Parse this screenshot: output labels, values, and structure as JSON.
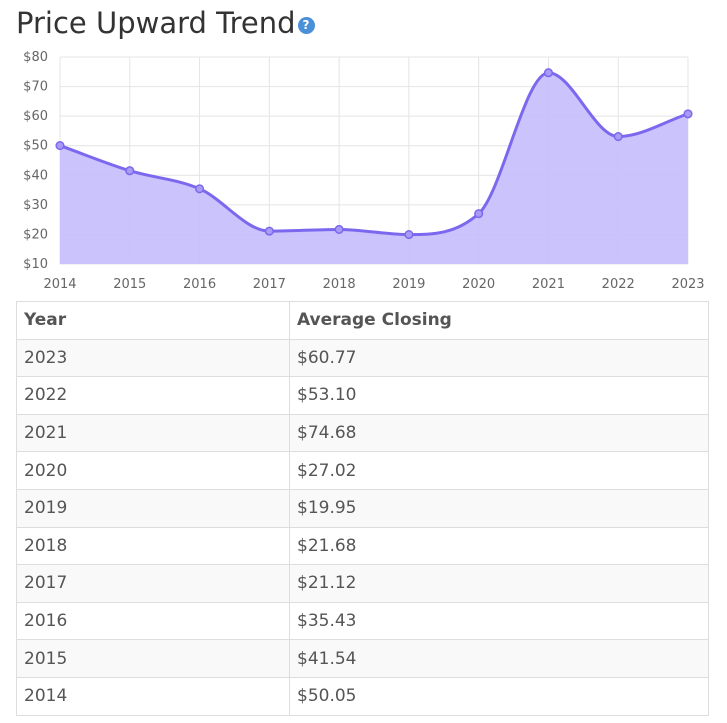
{
  "page": {
    "title": "Price Upward Trend",
    "help_icon": "question-circle-icon",
    "help_glyph": "?"
  },
  "chart_data": {
    "type": "area",
    "x": [
      "2014",
      "2015",
      "2016",
      "2017",
      "2018",
      "2019",
      "2020",
      "2021",
      "2022",
      "2023"
    ],
    "values": [
      50.05,
      41.54,
      35.43,
      21.12,
      21.68,
      19.95,
      27.02,
      74.68,
      53.1,
      60.77
    ],
    "ylim": [
      10,
      80
    ],
    "yticks": [
      10,
      20,
      30,
      40,
      50,
      60,
      70,
      80
    ],
    "ytick_labels": [
      "$10",
      "$20",
      "$30",
      "$40",
      "$50",
      "$60",
      "$70",
      "$80"
    ],
    "grid": true,
    "line_color": "#7b68ee",
    "fill_color": "#c5bdfb"
  },
  "table": {
    "headers": [
      "Year",
      "Average Closing"
    ],
    "rows": [
      [
        "2023",
        "$60.77"
      ],
      [
        "2022",
        "$53.10"
      ],
      [
        "2021",
        "$74.68"
      ],
      [
        "2020",
        "$27.02"
      ],
      [
        "2019",
        "$19.95"
      ],
      [
        "2018",
        "$21.68"
      ],
      [
        "2017",
        "$21.12"
      ],
      [
        "2016",
        "$35.43"
      ],
      [
        "2015",
        "$41.54"
      ],
      [
        "2014",
        "$50.05"
      ]
    ]
  }
}
